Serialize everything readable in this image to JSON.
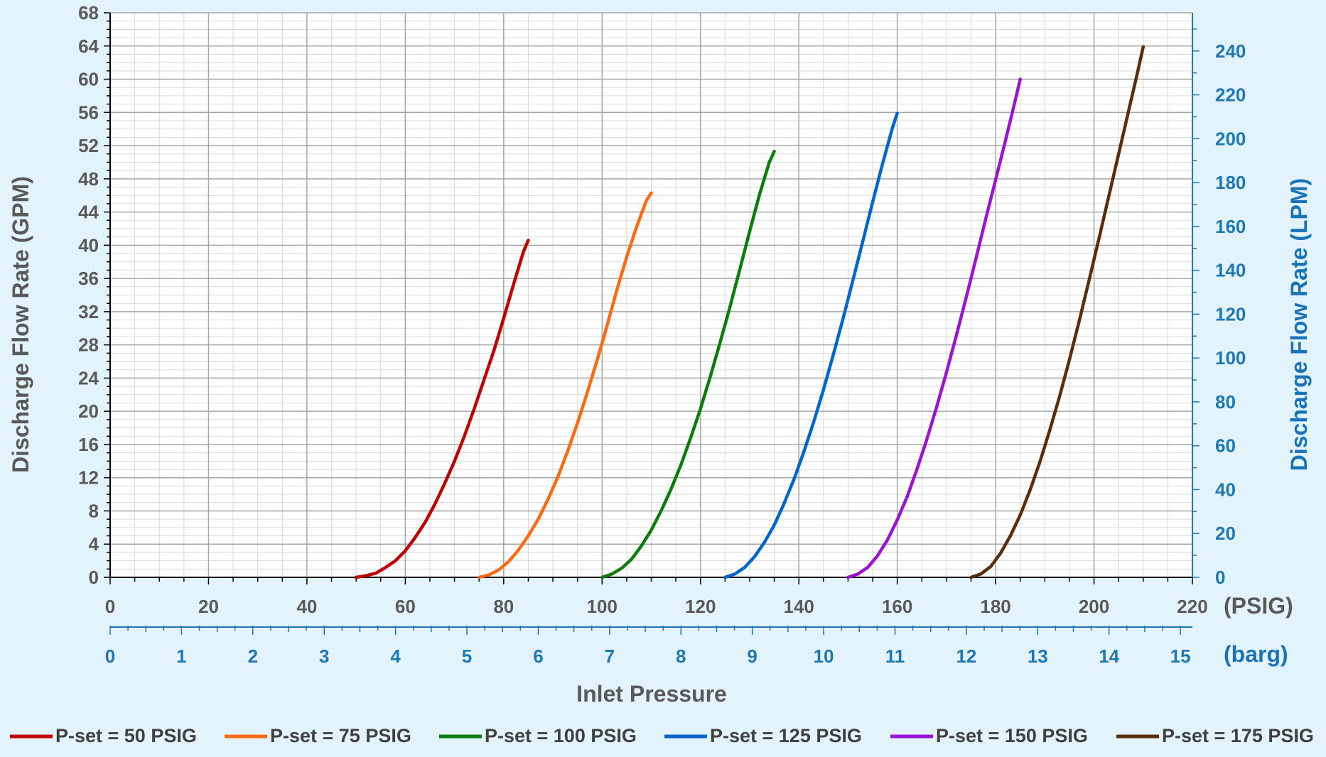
{
  "chart_data": {
    "type": "line",
    "xlabel": "Inlet Pressure",
    "ylabel": "Discharge Flow Rate (GPM)",
    "y2label": "Discharge Flow Rate (LPM)",
    "x_unit": "(PSIG)",
    "x2_unit": "(barg)",
    "xlim": [
      0,
      220
    ],
    "ylim": [
      0,
      68
    ],
    "x2lim": [
      0,
      15.17
    ],
    "y2lim": [
      0,
      257.4
    ],
    "x_ticks": [
      "0",
      "20",
      "40",
      "60",
      "80",
      "100",
      "120",
      "140",
      "160",
      "180",
      "200",
      "220"
    ],
    "y_ticks": [
      "0",
      "4",
      "8",
      "12",
      "16",
      "20",
      "24",
      "28",
      "32",
      "36",
      "40",
      "44",
      "48",
      "52",
      "56",
      "60",
      "64",
      "68"
    ],
    "x2_ticks": [
      "0",
      "1",
      "2",
      "3",
      "4",
      "5",
      "6",
      "7",
      "8",
      "9",
      "10",
      "11",
      "12",
      "13",
      "14",
      "15"
    ],
    "y2_ticks": [
      "0",
      "20",
      "40",
      "60",
      "80",
      "100",
      "120",
      "140",
      "160",
      "180",
      "200",
      "220",
      "240"
    ],
    "grid": true,
    "legend_position": "bottom",
    "series": [
      {
        "name": "P-set = 50 PSIG",
        "color": "#c00000",
        "x": [
          50,
          52,
          54,
          56,
          58,
          60,
          62,
          64,
          66,
          68,
          70,
          72,
          74,
          76,
          78,
          80,
          82,
          84,
          85
        ],
        "y": [
          0,
          0.2,
          0.5,
          1.2,
          2.0,
          3.2,
          4.8,
          6.6,
          8.8,
          11.3,
          14.0,
          17.0,
          20.3,
          23.8,
          27.3,
          31.2,
          35.3,
          39.2,
          40.6
        ]
      },
      {
        "name": "P-set = 75 PSIG",
        "color": "#ff6a13",
        "x": [
          75,
          77,
          79,
          81,
          83,
          85,
          87,
          89,
          91,
          93,
          95,
          97,
          99,
          101,
          103,
          105,
          107,
          109,
          110
        ],
        "y": [
          0,
          0.3,
          0.9,
          1.9,
          3.3,
          5.0,
          7.0,
          9.4,
          12.1,
          15.2,
          18.6,
          22.3,
          26.2,
          30.3,
          34.6,
          38.6,
          42.2,
          45.4,
          46.3
        ]
      },
      {
        "name": "P-set = 100 PSIG",
        "color": "#0a7d0a",
        "x": [
          100,
          102,
          104,
          106,
          108,
          110,
          112,
          114,
          116,
          118,
          120,
          122,
          124,
          126,
          128,
          130,
          132,
          134,
          135
        ],
        "y": [
          0,
          0.4,
          1.1,
          2.2,
          3.8,
          5.7,
          8.0,
          10.6,
          13.5,
          16.8,
          20.3,
          24.2,
          28.3,
          32.6,
          37.1,
          41.7,
          46.1,
          50.0,
          51.3
        ]
      },
      {
        "name": "P-set = 125 PSIG",
        "color": "#0066cc",
        "x": [
          125,
          127,
          129,
          131,
          133,
          135,
          137,
          139,
          141,
          143,
          145,
          147,
          149,
          151,
          153,
          155,
          157,
          159,
          160
        ],
        "y": [
          0,
          0.4,
          1.2,
          2.5,
          4.2,
          6.3,
          8.9,
          11.8,
          15.1,
          18.7,
          22.6,
          26.8,
          31.2,
          35.8,
          40.5,
          45.2,
          49.8,
          54.1,
          55.9
        ]
      },
      {
        "name": "P-set = 150 PSIG",
        "color": "#9b14d6",
        "x": [
          150,
          152,
          154,
          156,
          158,
          160,
          162,
          164,
          166,
          168,
          170,
          172,
          174,
          176,
          178,
          180,
          182,
          184,
          185
        ],
        "y": [
          0,
          0.4,
          1.2,
          2.6,
          4.5,
          6.9,
          9.7,
          13.0,
          16.6,
          20.5,
          24.7,
          29.1,
          33.7,
          38.4,
          43.2,
          47.9,
          52.6,
          57.5,
          60.0
        ]
      },
      {
        "name": "P-set = 175 PSIG",
        "color": "#5a2d0c",
        "x": [
          175,
          177,
          179,
          181,
          183,
          185,
          187,
          189,
          191,
          193,
          195,
          197,
          199,
          201,
          203,
          205,
          207,
          209,
          210
        ],
        "y": [
          0,
          0.4,
          1.3,
          2.9,
          5.0,
          7.5,
          10.5,
          13.9,
          17.7,
          21.8,
          26.2,
          30.9,
          35.8,
          40.8,
          45.9,
          51.0,
          56.1,
          61.2,
          63.9
        ]
      }
    ]
  }
}
